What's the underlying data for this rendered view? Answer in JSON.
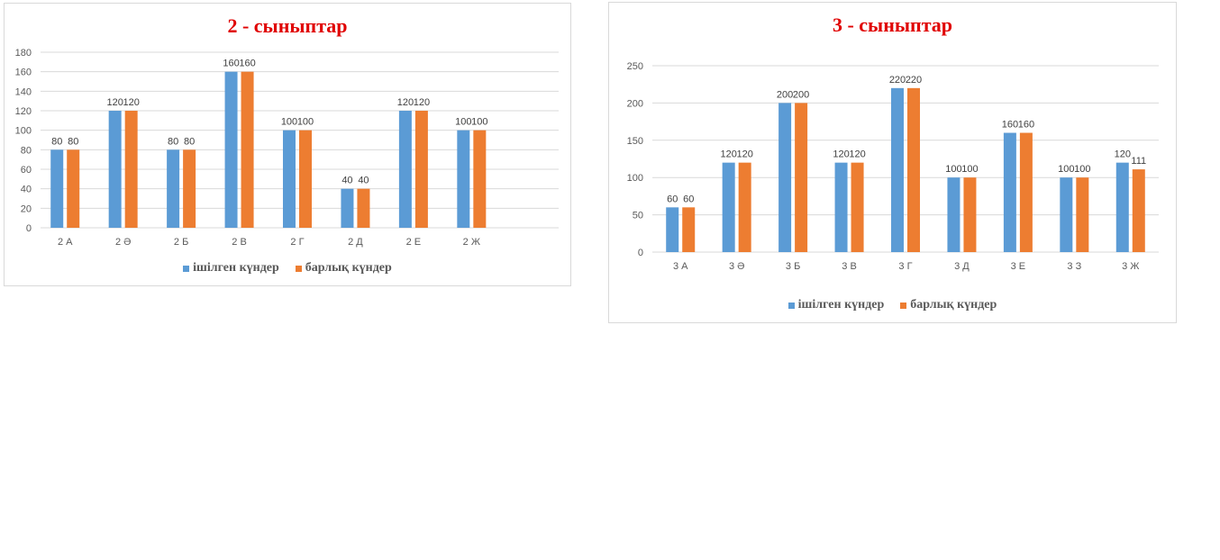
{
  "chart_data": [
    {
      "type": "bar",
      "title": "2 - сыныптар",
      "categories": [
        "2 А",
        "2 Ә",
        "2 Б",
        "2 В",
        "2 Г",
        "2 Д",
        "2 Е",
        "2 Ж"
      ],
      "series": [
        {
          "name": "ішілген күндер",
          "values": [
            80,
            120,
            80,
            160,
            100,
            40,
            120,
            100
          ]
        },
        {
          "name": "барлық күндер",
          "values": [
            80,
            120,
            80,
            160,
            100,
            40,
            120,
            100
          ]
        }
      ],
      "ylim": [
        0,
        180
      ],
      "yticks": [
        0,
        20,
        40,
        60,
        80,
        100,
        120,
        140,
        160,
        180
      ],
      "grid": true,
      "legend_position": "bottom",
      "xlabel": "",
      "ylabel": ""
    },
    {
      "type": "bar",
      "title": "3 - сыныптар",
      "categories": [
        "3 А",
        "3 Ә",
        "3 Б",
        "3 В",
        "3 Г",
        "3 Д",
        "3 Е",
        "3 З",
        "3 Ж"
      ],
      "series": [
        {
          "name": "ішілген күндер",
          "values": [
            60,
            120,
            200,
            120,
            220,
            100,
            160,
            100,
            120
          ]
        },
        {
          "name": "барлық күндер",
          "values": [
            60,
            120,
            200,
            120,
            220,
            100,
            160,
            100,
            111
          ]
        }
      ],
      "ylim": [
        0,
        250
      ],
      "yticks": [
        0,
        50,
        100,
        150,
        200,
        250
      ],
      "grid": true,
      "legend_position": "bottom",
      "xlabel": "",
      "ylabel": ""
    }
  ],
  "colors": {
    "series_1": "#5b9bd5",
    "series_2": "#ed7d31",
    "title": "#e00000",
    "grid": "#d9d9d9",
    "axis_text": "#595959"
  }
}
